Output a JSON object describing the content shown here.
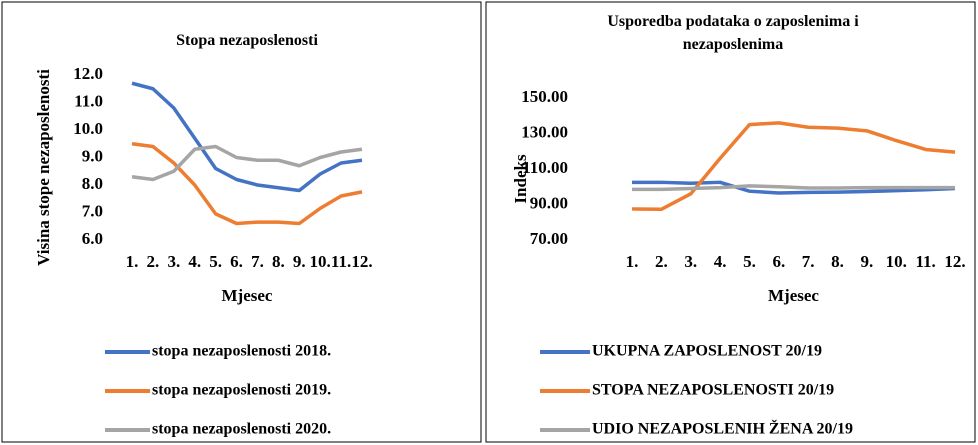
{
  "chart_data": [
    {
      "type": "line",
      "title": "Stopa nezaposlenosti",
      "ylabel": "Visina stope nezaposlenosti",
      "xlabel": "Mjesec",
      "categories": [
        "1.",
        "2.",
        "3.",
        "4.",
        "5.",
        "6.",
        "7.",
        "8.",
        "9.",
        "10.",
        "11.",
        "12."
      ],
      "ylim": [
        6,
        12
      ],
      "yticks": [
        {
          "value": 6,
          "label": "6.0"
        },
        {
          "value": 7,
          "label": "7.0"
        },
        {
          "value": 8,
          "label": "8.0"
        },
        {
          "value": 9,
          "label": "9.0"
        },
        {
          "value": 10,
          "label": "10.0"
        },
        {
          "value": 11,
          "label": "11.0"
        },
        {
          "value": 12,
          "label": "12.0"
        }
      ],
      "grid": false,
      "legend": "bottom",
      "series": [
        {
          "name": "stopa nezaposlenosti 2018.",
          "color": "#4472c4",
          "values": [
            11.7,
            11.5,
            10.8,
            9.7,
            8.6,
            8.2,
            8.0,
            7.9,
            7.8,
            8.4,
            8.8,
            8.9
          ]
        },
        {
          "name": "stopa nezaposlenosti 2019.",
          "color": "#ed7d31",
          "values": [
            9.5,
            9.4,
            8.8,
            8.0,
            6.95,
            6.6,
            6.65,
            6.65,
            6.6,
            7.15,
            7.6,
            7.75
          ]
        },
        {
          "name": "stopa nezaposlenosti 2020.",
          "color": "#a5a5a5",
          "values": [
            8.3,
            8.2,
            8.5,
            9.3,
            9.4,
            9.0,
            8.9,
            8.9,
            8.7,
            9.0,
            9.2,
            9.3
          ]
        }
      ]
    },
    {
      "type": "line",
      "title": "Usporedba podataka o zaposlenima i nezaposlenima",
      "ylabel": "Indeks",
      "xlabel": "Mjesec",
      "categories": [
        "1.",
        "2.",
        "3.",
        "4.",
        "5.",
        "6.",
        "7.",
        "8.",
        "9.",
        "10.",
        "11.",
        "12."
      ],
      "ylim": [
        70,
        150
      ],
      "yticks": [
        {
          "value": 70,
          "label": "70.00"
        },
        {
          "value": 90,
          "label": "90.00"
        },
        {
          "value": 110,
          "label": "110.00"
        },
        {
          "value": 130,
          "label": "130.00"
        },
        {
          "value": 150,
          "label": "150.00"
        }
      ],
      "grid": false,
      "legend": "bottom",
      "series": [
        {
          "name": "UKUPNA ZAPOSLENOST 20/19",
          "color": "#4472c4",
          "values": [
            102.5,
            102.5,
            102,
            102.5,
            97.5,
            96.5,
            96.8,
            97,
            97.3,
            97.8,
            98.3,
            99
          ]
        },
        {
          "name": "STOPA NEZAPOSLENOSTI 20/19",
          "color": "#ed7d31",
          "values": [
            87.5,
            87.3,
            96,
            116,
            135,
            136,
            133.5,
            133,
            131.5,
            126,
            121,
            119.5
          ]
        },
        {
          "name": "UDIO NEZAPOSLENIH ŽENA 20/19",
          "color": "#a5a5a5",
          "values": [
            98.5,
            98.5,
            99,
            99.5,
            100.5,
            100,
            99.3,
            99.3,
            99.5,
            99.5,
            99.5,
            99.5
          ]
        }
      ]
    }
  ]
}
